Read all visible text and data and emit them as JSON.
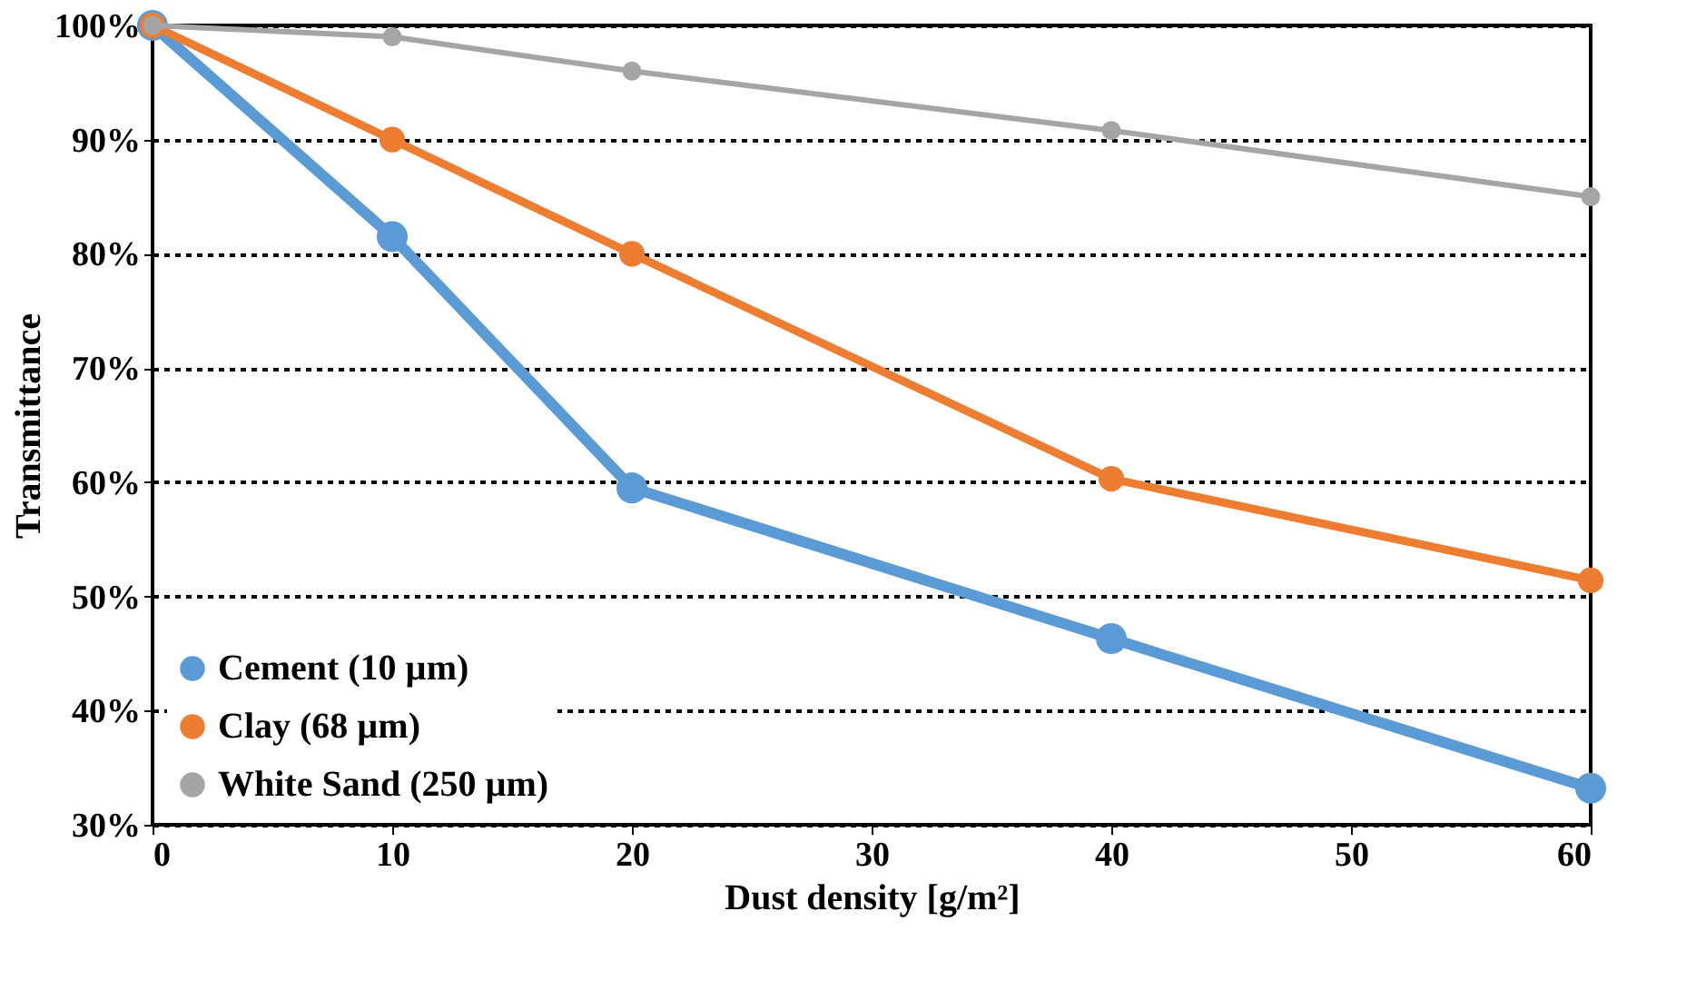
{
  "chart_data": {
    "type": "line",
    "xlabel": "Dust density [g/m²]",
    "ylabel": "Transmittance",
    "x": [
      0,
      10,
      20,
      40,
      60
    ],
    "series": [
      {
        "name": "Cement (10 µm)",
        "color": "#5b9bd5",
        "values": [
          100,
          81.5,
          59.5,
          46.3,
          33.2
        ]
      },
      {
        "name": "Clay (68 µm)",
        "color": "#ed7d31",
        "values": [
          100,
          90,
          80,
          60.3,
          51.4
        ]
      },
      {
        "name": "White Sand (250 µm)",
        "color": "#a5a5a5",
        "values": [
          100,
          99,
          96,
          90.8,
          85
        ]
      }
    ],
    "xlim": [
      0,
      60
    ],
    "xticks": [
      0,
      10,
      20,
      30,
      40,
      50,
      60
    ],
    "ylim": [
      30,
      100
    ],
    "yticks": [
      {
        "value": 30,
        "label": "30%"
      },
      {
        "value": 40,
        "label": "40%"
      },
      {
        "value": 50,
        "label": "50%"
      },
      {
        "value": 60,
        "label": "60%"
      },
      {
        "value": 70,
        "label": "70%"
      },
      {
        "value": 80,
        "label": "80%"
      },
      {
        "value": 90,
        "label": "90%"
      },
      {
        "value": 100,
        "label": "100%"
      }
    ],
    "grid": "y",
    "legend": "bottom left",
    "marker": "circle",
    "line_style": "solid"
  }
}
